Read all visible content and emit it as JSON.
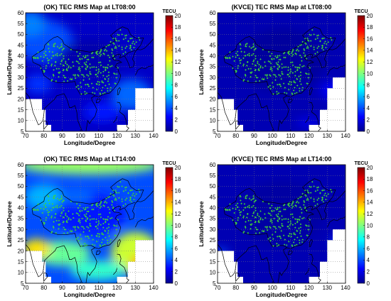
{
  "chart_data": [
    {
      "type": "heatmap",
      "title": "(OK) TEC RMS Map at LT08:00",
      "xlabel": "Longitude/Degree",
      "ylabel": "Latitude/Degree",
      "xlim": [
        70,
        140
      ],
      "ylim": [
        5,
        60
      ],
      "xticks": [
        "70",
        "80",
        "90",
        "100",
        "110",
        "120",
        "130",
        "140"
      ],
      "yticks": [
        "5",
        "10",
        "15",
        "20",
        "25",
        "30",
        "35",
        "40",
        "45",
        "50",
        "55",
        "60"
      ],
      "colorbar": {
        "unit": "TECU",
        "range": [
          0,
          20
        ],
        "ticks": [
          "0",
          "2",
          "4",
          "6",
          "8",
          "10",
          "12",
          "14",
          "16",
          "18",
          "20"
        ]
      },
      "field_level": 1.4,
      "peak_level": 5.5,
      "grid": true
    },
    {
      "type": "heatmap",
      "title": "(KVCE) TEC RMS Map at LT08:00",
      "xlabel": "Longitude/Degree",
      "ylabel": "Latitude/Degree",
      "xlim": [
        70,
        140
      ],
      "ylim": [
        5,
        60
      ],
      "xticks": [
        "70",
        "80",
        "90",
        "100",
        "110",
        "120",
        "130",
        "140"
      ],
      "yticks": [
        "5",
        "10",
        "15",
        "20",
        "25",
        "30",
        "35",
        "40",
        "45",
        "50",
        "55",
        "60"
      ],
      "colorbar": {
        "unit": "TECU",
        "range": [
          0,
          20
        ],
        "ticks": [
          "0",
          "2",
          "4",
          "6",
          "8",
          "10",
          "12",
          "14",
          "16",
          "18",
          "20"
        ]
      },
      "field_level": 1.0,
      "peak_level": 2.5,
      "grid": true
    },
    {
      "type": "heatmap",
      "title": "(OK) TEC RMS Map at LT14:00",
      "xlabel": "Longitude/Degree",
      "ylabel": "Latitude/Degree",
      "xlim": [
        70,
        140
      ],
      "ylim": [
        5,
        60
      ],
      "xticks": [
        "70",
        "80",
        "90",
        "100",
        "110",
        "120",
        "130",
        "140"
      ],
      "yticks": [
        "5",
        "10",
        "15",
        "20",
        "25",
        "30",
        "35",
        "40",
        "45",
        "50",
        "55",
        "60"
      ],
      "colorbar": {
        "unit": "TECU",
        "range": [
          0,
          20
        ],
        "ticks": [
          "0",
          "2",
          "4",
          "6",
          "8",
          "10",
          "12",
          "14",
          "16",
          "18",
          "20"
        ]
      },
      "field_level": 4.0,
      "peak_level": 14.0,
      "grid": true
    },
    {
      "type": "heatmap",
      "title": "(KVCE) TEC RMS Map at LT14:00",
      "xlabel": "Longitude/Degree",
      "ylabel": "Latitude/Degree",
      "xlim": [
        70,
        140
      ],
      "ylim": [
        5,
        60
      ],
      "xticks": [
        "70",
        "80",
        "90",
        "100",
        "110",
        "120",
        "130",
        "140"
      ],
      "yticks": [
        "5",
        "10",
        "15",
        "20",
        "25",
        "30",
        "35",
        "40",
        "45",
        "50",
        "55",
        "60"
      ],
      "colorbar": {
        "unit": "TECU",
        "range": [
          0,
          20
        ],
        "ticks": [
          "0",
          "2",
          "4",
          "6",
          "8",
          "10",
          "12",
          "14",
          "16",
          "18",
          "20"
        ]
      },
      "field_level": 1.0,
      "peak_level": 4.0,
      "grid": true
    }
  ],
  "colors": {
    "station_marker": "#3fd23a",
    "coastline": "#000000",
    "no_data": "#ffffff"
  }
}
